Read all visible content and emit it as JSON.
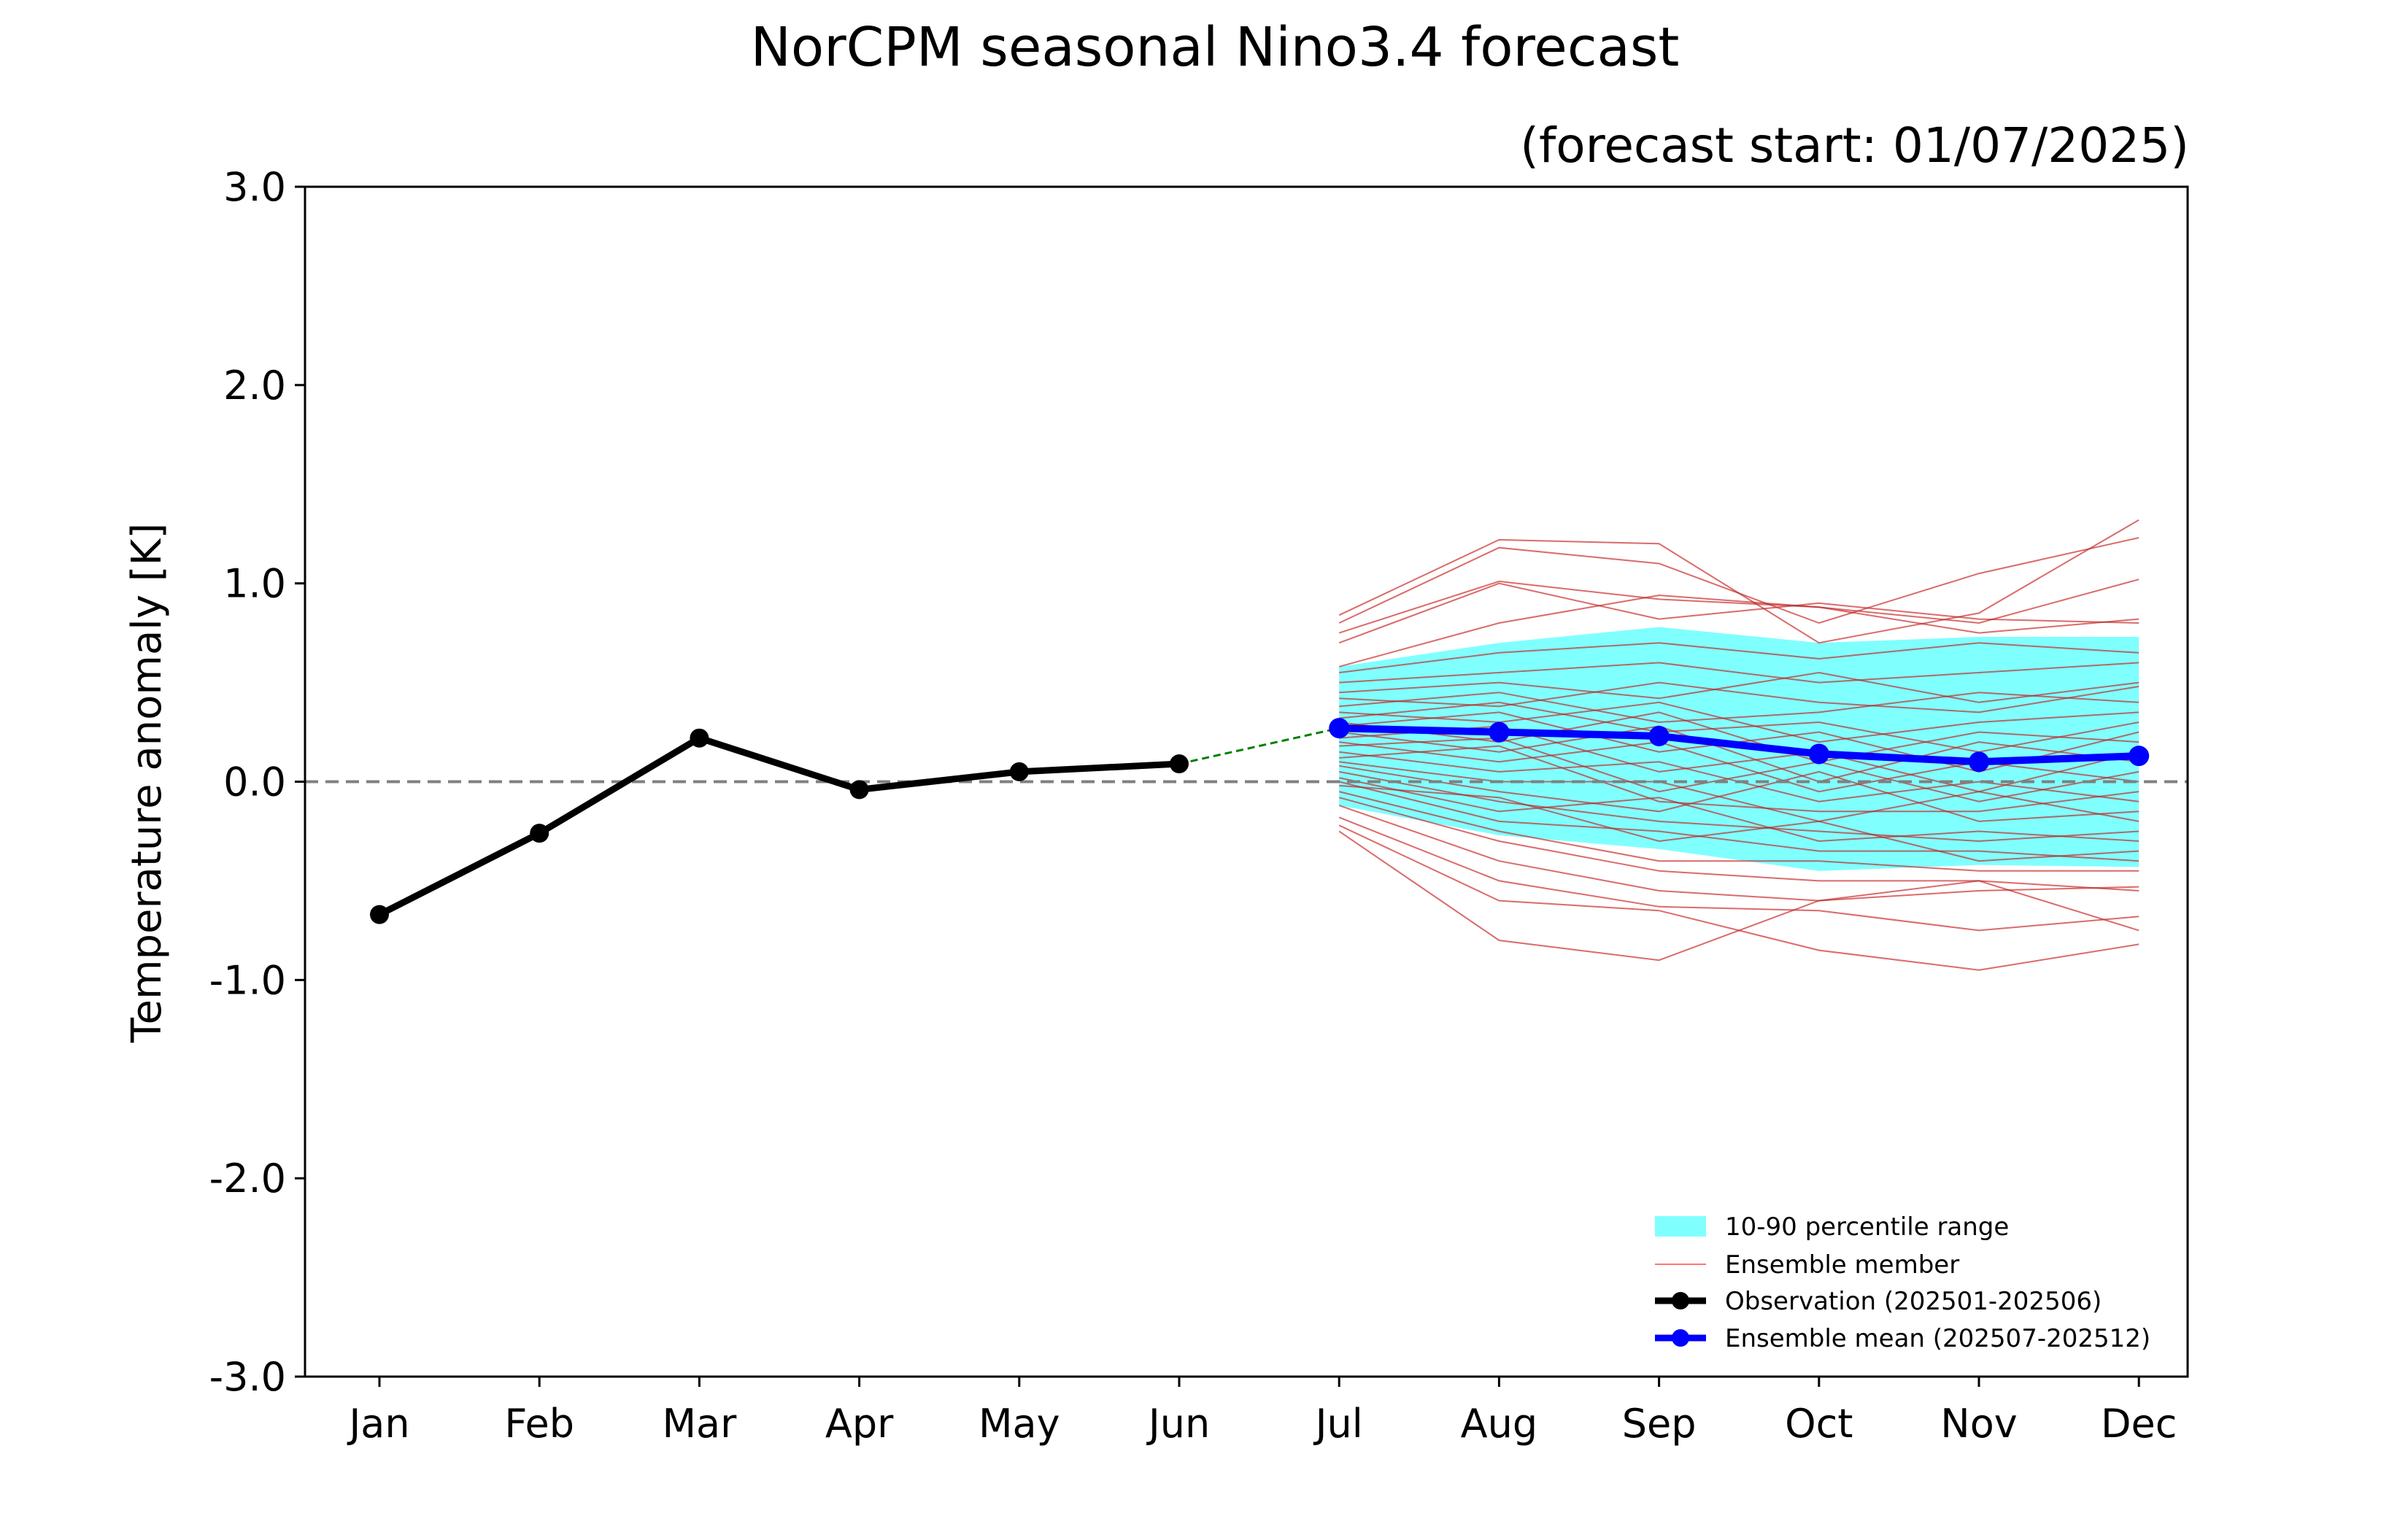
{
  "chart_data": {
    "type": "line",
    "title": "NorCPM seasonal Nino3.4 forecast",
    "subtitle": "(forecast start: 01/07/2025)",
    "xlabel": "",
    "ylabel": "Temperature anomaly [K]",
    "ylim": [
      -3.0,
      3.0
    ],
    "yticks": [
      -3.0,
      -2.0,
      -1.0,
      0.0,
      1.0,
      2.0,
      3.0
    ],
    "ytick_labels": [
      "-3.0",
      "-2.0",
      "-1.0",
      "0.0",
      "1.0",
      "2.0",
      "3.0"
    ],
    "categories": [
      "Jan",
      "Feb",
      "Mar",
      "Apr",
      "May",
      "Jun",
      "Jul",
      "Aug",
      "Sep",
      "Oct",
      "Nov",
      "Dec"
    ],
    "zero_line": 0.0,
    "observation": {
      "name": "Observation (202501-202506)",
      "color": "#000000",
      "months": [
        "Jan",
        "Feb",
        "Mar",
        "Apr",
        "May",
        "Jun"
      ],
      "values": [
        -0.67,
        -0.26,
        0.22,
        -0.04,
        0.05,
        0.09
      ]
    },
    "ensemble_mean": {
      "name": "Ensemble mean (202507-202512)",
      "color": "#0000ff",
      "months": [
        "Jul",
        "Aug",
        "Sep",
        "Oct",
        "Nov",
        "Dec"
      ],
      "values": [
        0.27,
        0.25,
        0.23,
        0.14,
        0.1,
        0.13
      ]
    },
    "connector": {
      "color": "#008000",
      "from": {
        "month": "Jun",
        "value": 0.09
      },
      "to": {
        "month": "Jul",
        "value": 0.27
      }
    },
    "percentile_range": {
      "name": "10-90 percentile range",
      "color": "#80ffff",
      "months": [
        "Jul",
        "Aug",
        "Sep",
        "Oct",
        "Nov",
        "Dec"
      ],
      "p90": [
        0.58,
        0.7,
        0.78,
        0.7,
        0.73,
        0.73
      ],
      "p10": [
        -0.12,
        -0.27,
        -0.34,
        -0.45,
        -0.42,
        -0.43
      ]
    },
    "ensemble_members": {
      "name": "Ensemble member",
      "color": "#ff0000",
      "months": [
        "Jul",
        "Aug",
        "Sep",
        "Oct",
        "Nov",
        "Dec"
      ],
      "members": [
        [
          0.84,
          1.22,
          1.2,
          0.7,
          0.85,
          1.32
        ],
        [
          0.8,
          1.18,
          1.1,
          0.8,
          1.05,
          1.23
        ],
        [
          0.75,
          1.01,
          0.92,
          0.88,
          0.8,
          1.02
        ],
        [
          0.7,
          1.0,
          0.82,
          0.9,
          0.82,
          0.8
        ],
        [
          0.58,
          0.8,
          0.94,
          0.88,
          0.75,
          0.82
        ],
        [
          0.55,
          0.65,
          0.7,
          0.62,
          0.7,
          0.65
        ],
        [
          0.5,
          0.55,
          0.6,
          0.5,
          0.55,
          0.6
        ],
        [
          0.45,
          0.5,
          0.42,
          0.55,
          0.4,
          0.5
        ],
        [
          0.42,
          0.38,
          0.5,
          0.4,
          0.35,
          0.48
        ],
        [
          0.38,
          0.45,
          0.3,
          0.35,
          0.45,
          0.4
        ],
        [
          0.35,
          0.3,
          0.4,
          0.2,
          0.3,
          0.35
        ],
        [
          0.32,
          0.4,
          0.25,
          0.3,
          0.15,
          0.3
        ],
        [
          0.3,
          0.2,
          0.35,
          0.1,
          0.25,
          0.2
        ],
        [
          0.28,
          0.35,
          0.15,
          0.25,
          0.05,
          0.25
        ],
        [
          0.25,
          0.15,
          0.28,
          0.0,
          0.2,
          0.1
        ],
        [
          0.22,
          0.28,
          0.05,
          0.15,
          -0.05,
          0.15
        ],
        [
          0.2,
          0.1,
          0.2,
          -0.05,
          0.1,
          0.0
        ],
        [
          0.18,
          0.22,
          -0.05,
          0.1,
          -0.1,
          0.05
        ],
        [
          0.15,
          0.05,
          0.1,
          -0.1,
          0.0,
          -0.1
        ],
        [
          0.12,
          0.18,
          -0.1,
          -0.15,
          -0.15,
          -0.05
        ],
        [
          0.1,
          0.0,
          0.0,
          -0.2,
          -0.05,
          -0.2
        ],
        [
          0.08,
          -0.05,
          -0.15,
          0.05,
          -0.2,
          -0.15
        ],
        [
          0.05,
          -0.1,
          -0.2,
          -0.25,
          -0.3,
          -0.25
        ],
        [
          0.02,
          -0.15,
          -0.08,
          -0.3,
          -0.25,
          -0.3
        ],
        [
          0.0,
          -0.2,
          -0.25,
          -0.35,
          -0.35,
          -0.4
        ],
        [
          -0.02,
          -0.08,
          -0.3,
          -0.2,
          -0.4,
          -0.35
        ],
        [
          -0.05,
          -0.25,
          -0.4,
          -0.4,
          -0.45,
          -0.45
        ],
        [
          -0.08,
          -0.3,
          -0.45,
          -0.5,
          -0.5,
          -0.55
        ],
        [
          -0.12,
          -0.4,
          -0.55,
          -0.6,
          -0.55,
          -0.53
        ],
        [
          -0.18,
          -0.5,
          -0.63,
          -0.65,
          -0.75,
          -0.68
        ],
        [
          -0.22,
          -0.6,
          -0.65,
          -0.85,
          -0.95,
          -0.82
        ],
        [
          -0.25,
          -0.8,
          -0.9,
          -0.6,
          -0.5,
          -0.75
        ]
      ]
    },
    "legend": {
      "position": "lower-right",
      "entries": [
        "10-90 percentile range",
        "Ensemble member",
        "Observation (202501-202506)",
        "Ensemble mean (202507-202512)"
      ]
    }
  }
}
